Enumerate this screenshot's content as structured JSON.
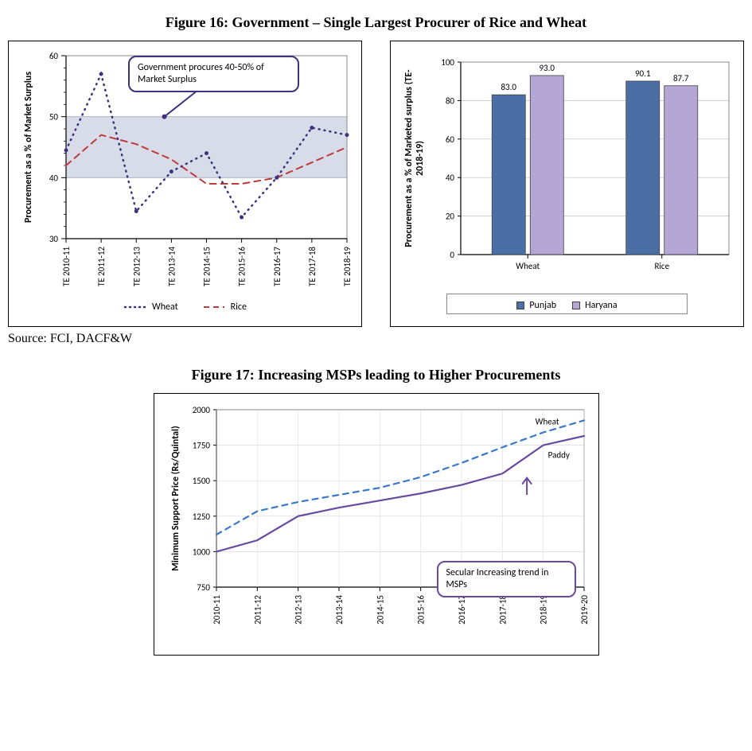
{
  "figure16": {
    "title": "Figure 16:  Government – Single Largest Procurer of Rice and Wheat",
    "source": "Source: FCI, DACF&W",
    "lineChart": {
      "type": "line",
      "x_categories": [
        "TE 2010-11",
        "TE 2011-12",
        "TE 2012-13",
        "TE 2013-14",
        "TE 2014-15",
        "TE 2015-16",
        "TE 2016-17",
        "TE 2017-18",
        "TE 2018-19"
      ],
      "series": {
        "Wheat": {
          "label": "Wheat",
          "values": [
            44.5,
            57.0,
            34.5,
            41.0,
            44.0,
            33.5,
            40.0,
            48.2,
            47.0
          ],
          "color": "#3f3180",
          "style": "dotted",
          "marker": "dot",
          "line_width": 2.5
        },
        "Rice": {
          "label": "Rice",
          "values": [
            42.0,
            47.0,
            45.5,
            43.0,
            39.0,
            39.0,
            40.0,
            42.5,
            45.0
          ],
          "color": "#bf3b3b",
          "style": "dashed",
          "marker": "none",
          "line_width": 2
        }
      },
      "ylabel": "Procurement as a % of Market Surplus",
      "ylim": [
        30,
        60
      ],
      "ytick_step": 10,
      "ymajor_ticks": [
        30,
        40,
        50,
        60
      ],
      "yminor_ticks": [
        32,
        34,
        36,
        38,
        42,
        44,
        46,
        48,
        52,
        54,
        56,
        58
      ],
      "band": {
        "from": 40,
        "to": 50,
        "fill": "#b7c0d6",
        "fill_opacity": 0.55,
        "stroke": "#6b7aa1"
      },
      "callout": {
        "text": "Government procures 40-50% of Market Surplus",
        "border_color": "#3f3180",
        "pointer_target_y": 50
      },
      "grid_color": "#bfbfbf",
      "background": "#ffffff",
      "label_fontsize": 12,
      "tick_fontsize": 11
    },
    "barChart": {
      "type": "grouped-bar",
      "categories": [
        "Wheat",
        "Rice"
      ],
      "series": {
        "Punjab": {
          "label": "Punjab",
          "values": [
            83.0,
            90.1
          ],
          "color": "#4a6fa5"
        },
        "Haryana": {
          "label": "Haryana",
          "values": [
            93.0,
            87.7
          ],
          "color": "#b4a7d6"
        }
      },
      "ylabel": "Procurement as a % of Marketed surplus (TE-2018-19)",
      "ylim": [
        0,
        100
      ],
      "ytick_step": 20,
      "grid_color": "#bfbfbf",
      "bar_border": "#404040",
      "data_label_fontsize": 12,
      "label_fontsize": 12,
      "background": "#ffffff"
    }
  },
  "figure17": {
    "title": "Figure 17: Increasing MSPs leading to Higher Procurements",
    "lineChart": {
      "type": "line",
      "x_categories": [
        "2010-11",
        "2011-12",
        "2012-13",
        "2013-14",
        "2014-15",
        "2015-16",
        "2016-17",
        "2017-18",
        "2018-19",
        "2019-20"
      ],
      "series": {
        "Wheat": {
          "label": "Wheat",
          "values": [
            1120,
            1285,
            1350,
            1400,
            1450,
            1525,
            1625,
            1735,
            1840,
            1925
          ],
          "color": "#3b78c9",
          "style": "dashed",
          "line_width": 2.2
        },
        "Paddy": {
          "label": "Paddy",
          "values": [
            1000,
            1080,
            1250,
            1310,
            1360,
            1410,
            1470,
            1550,
            1750,
            1815
          ],
          "color": "#6a4a9c",
          "style": "solid",
          "line_width": 2.2
        }
      },
      "ylabel": "Minimum Support Price (Rs/Quintal)",
      "ylim": [
        750,
        2000
      ],
      "ytick_step": 250,
      "grid_color": "#d9d9d9",
      "callout": {
        "text": "Secular Increasing trend in MSPs",
        "border_color": "#6a4a9c"
      },
      "label_fontsize": 12,
      "tick_fontsize": 11,
      "background": "#ffffff"
    }
  }
}
